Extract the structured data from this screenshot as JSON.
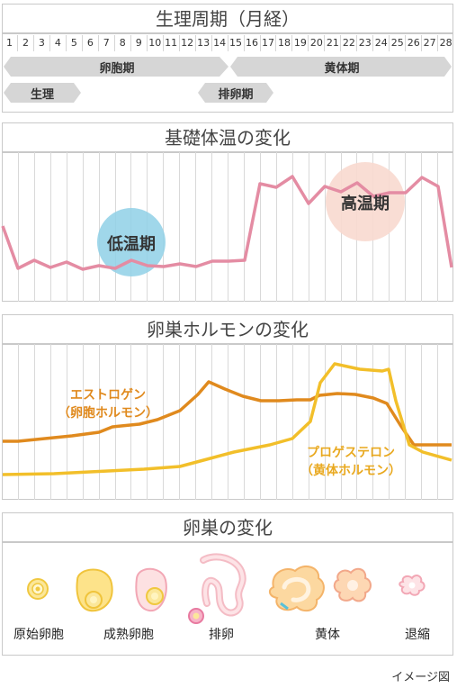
{
  "cycle": {
    "title": "生理周期（月経）",
    "days": [
      "1",
      "2",
      "3",
      "4",
      "5",
      "6",
      "7",
      "8",
      "9",
      "10",
      "11",
      "12",
      "13",
      "14",
      "15",
      "16",
      "17",
      "18",
      "19",
      "20",
      "21",
      "22",
      "23",
      "24",
      "25",
      "26",
      "27",
      "28"
    ],
    "follicular_phase": "卵胞期",
    "luteal_phase": "黄体期",
    "menstruation": "生理",
    "ovulation_phase": "排卵期"
  },
  "temperature": {
    "title": "基礎体温の変化",
    "low_label": "低温期",
    "high_label": "高温期"
  },
  "hormones": {
    "title": "卵巣ホルモンの変化",
    "estrogen_line1": "エストロゲン",
    "estrogen_line2": "（卵胞ホルモン）",
    "progesterone_line1": "プロゲステロン",
    "progesterone_line2": "（黄体ホルモン）"
  },
  "ovary": {
    "title": "卵巣の変化",
    "stages": [
      "原始卵胞",
      "成熟卵胞",
      "排卵",
      "黄体",
      "退縮"
    ]
  },
  "caption": "イメージ図",
  "colors": {
    "temperature_line": "#e48ca3",
    "estrogen": "#e08a1e",
    "progesterone": "#f2bf2a",
    "low_bubble": "#8fd0e6",
    "high_bubble": "#f8d9cf",
    "arrow": "#d6d6d6"
  }
}
